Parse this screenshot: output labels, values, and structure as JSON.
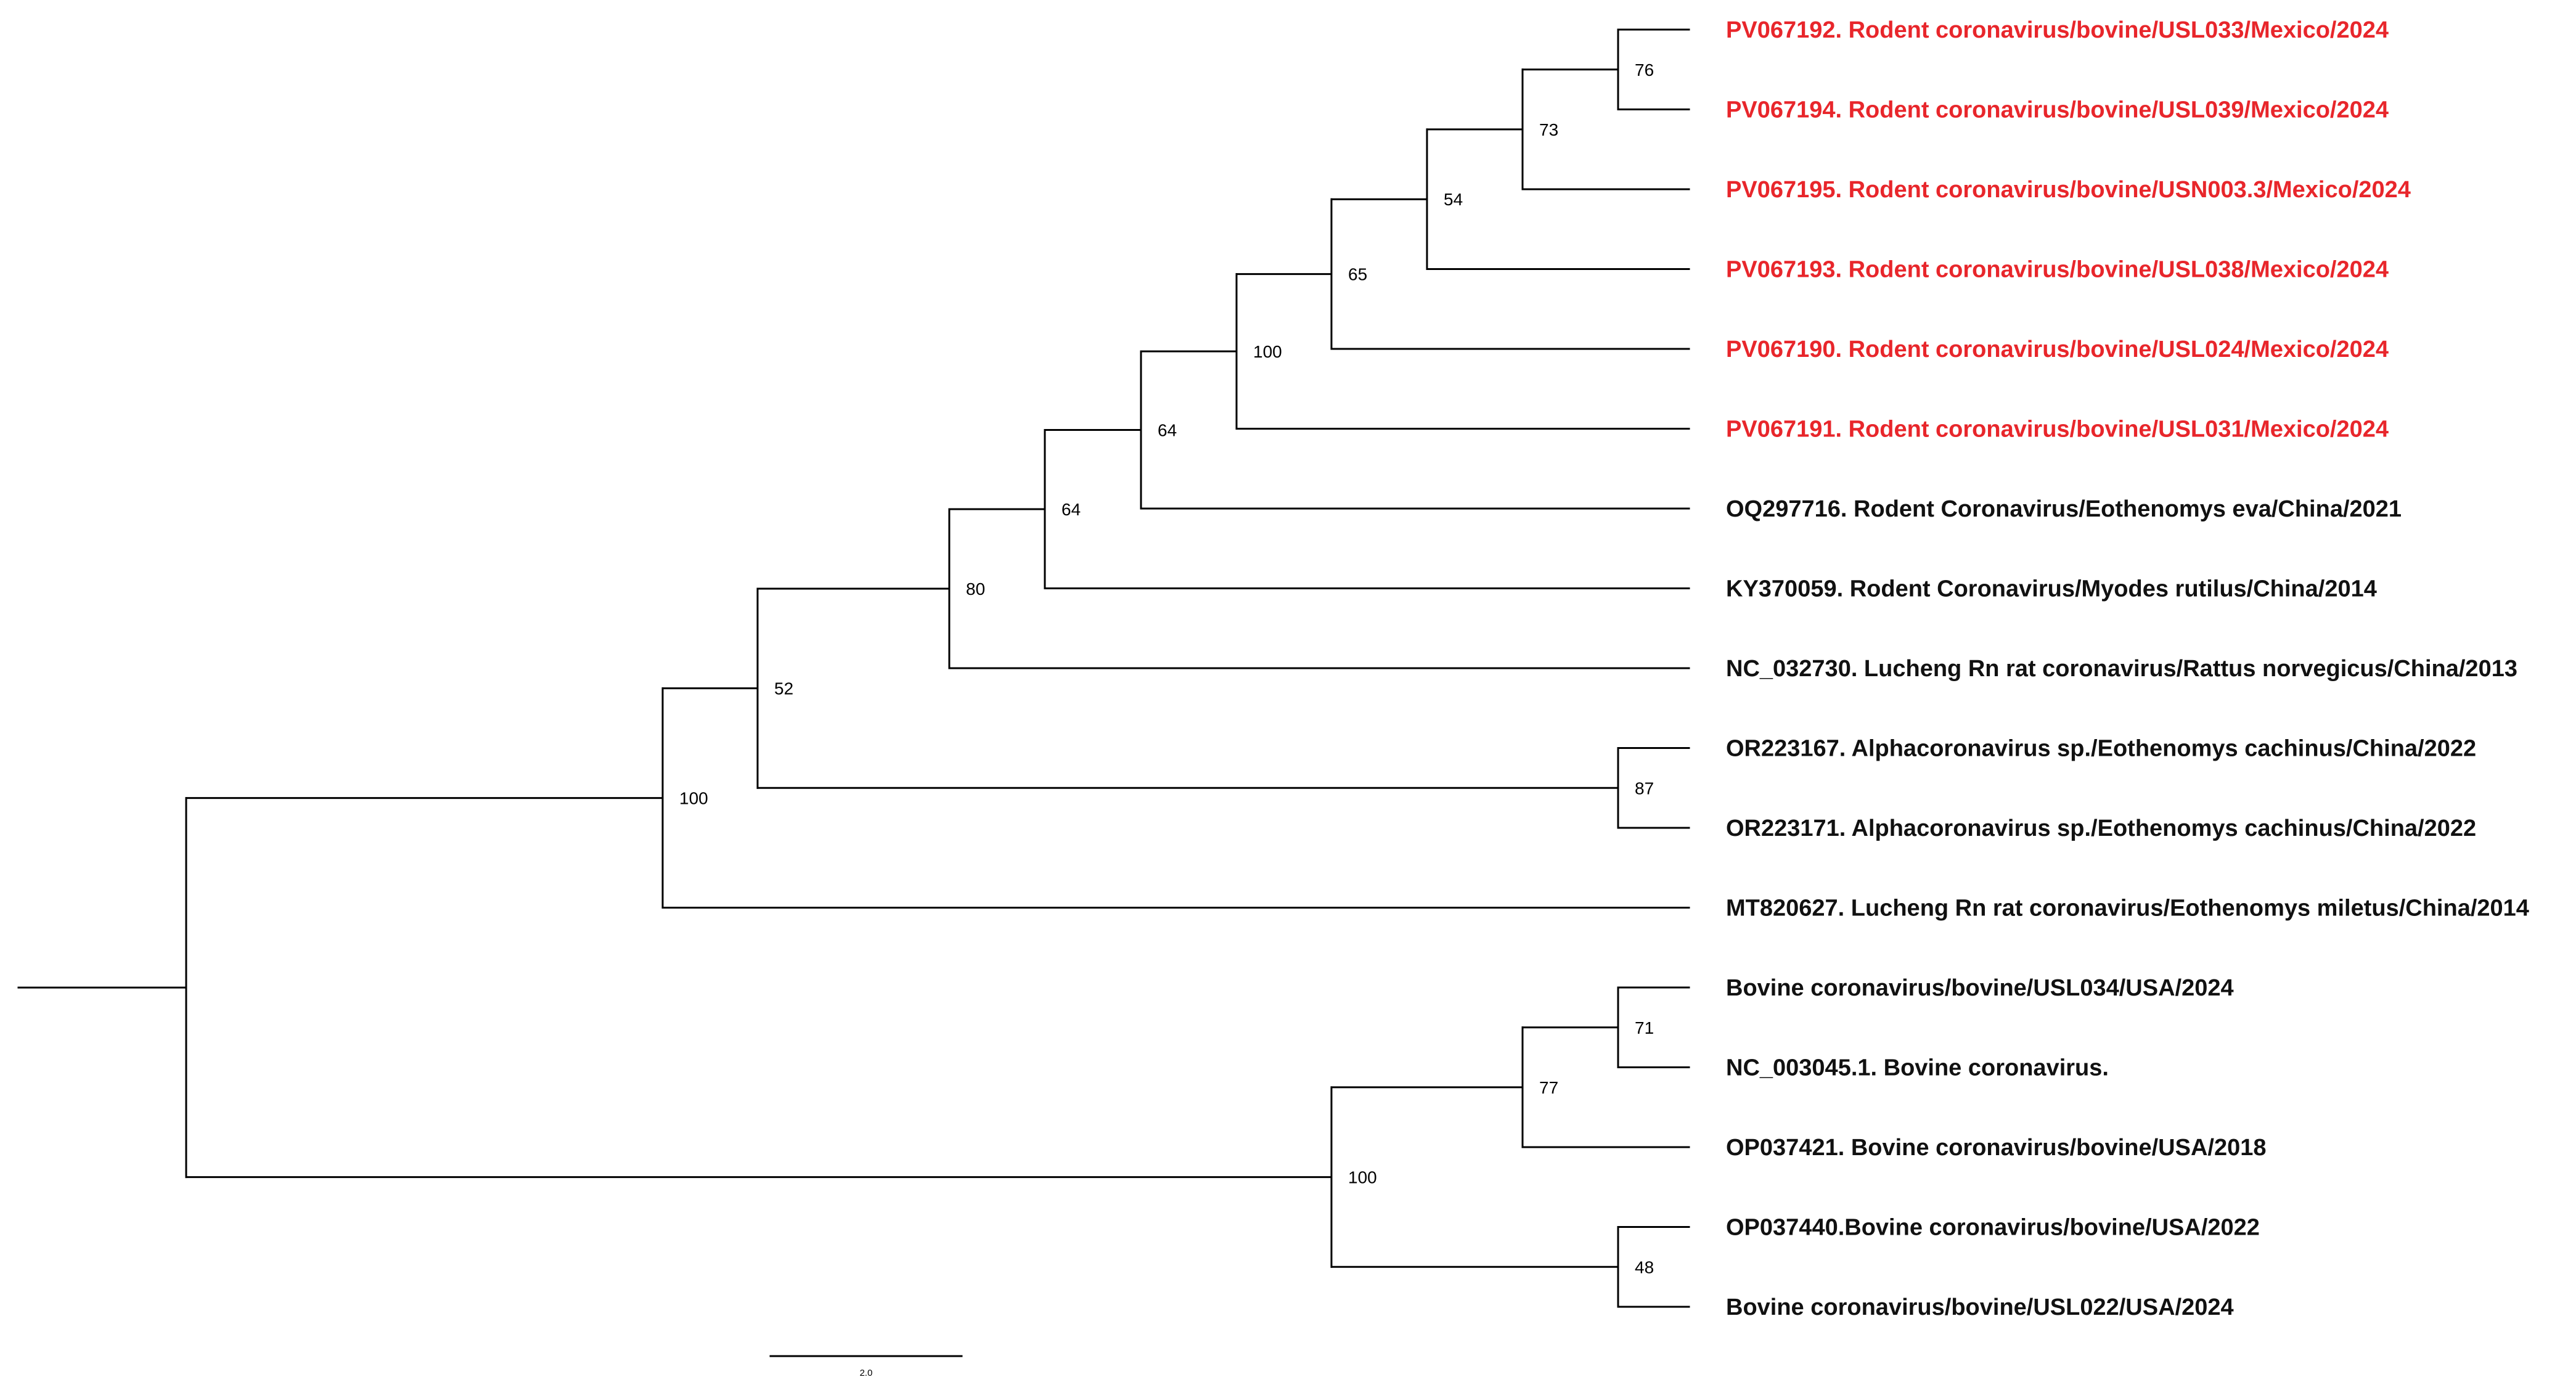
{
  "colors": {
    "highlight": "#e8262b",
    "default": "#111111"
  },
  "tree": {
    "id": "root",
    "children": [
      {
        "id": "n100a",
        "support": "100",
        "children": [
          {
            "id": "n52",
            "support": "52",
            "children": [
              {
                "id": "n80",
                "support": "80",
                "children": [
                  {
                    "id": "n64a",
                    "support": "64",
                    "children": [
                      {
                        "id": "n64b",
                        "support": "64",
                        "children": [
                          {
                            "id": "n100b",
                            "support": "100",
                            "children": [
                              {
                                "id": "n65",
                                "support": "65",
                                "children": [
                                  {
                                    "id": "n54",
                                    "support": "54",
                                    "children": [
                                      {
                                        "id": "n73",
                                        "support": "73",
                                        "children": [
                                          {
                                            "id": "n76",
                                            "support": "76",
                                            "children": [
                                              {
                                                "label": "PV067192. Rodent coronavirus/bovine/USL033/Mexico/2024",
                                                "highlight": true
                                              },
                                              {
                                                "label": "PV067194. Rodent coronavirus/bovine/USL039/Mexico/2024",
                                                "highlight": true
                                              }
                                            ]
                                          },
                                          {
                                            "label": "PV067195. Rodent coronavirus/bovine/USN003.3/Mexico/2024",
                                            "highlight": true
                                          }
                                        ]
                                      },
                                      {
                                        "label": "PV067193. Rodent coronavirus/bovine/USL038/Mexico/2024",
                                        "highlight": true
                                      }
                                    ]
                                  },
                                  {
                                    "label": "PV067190. Rodent coronavirus/bovine/USL024/Mexico/2024",
                                    "highlight": true
                                  }
                                ]
                              },
                              {
                                "label": "PV067191. Rodent coronavirus/bovine/USL031/Mexico/2024",
                                "highlight": true
                              }
                            ]
                          },
                          {
                            "label": "OQ297716. Rodent Coronavirus/Eothenomys eva/China/2021",
                            "highlight": false
                          }
                        ]
                      },
                      {
                        "label": "KY370059. Rodent Coronavirus/Myodes rutilus/China/2014",
                        "highlight": false
                      }
                    ]
                  },
                  {
                    "label": "NC_032730. Lucheng Rn rat coronavirus/Rattus norvegicus/China/2013",
                    "highlight": false
                  }
                ]
              },
              {
                "id": "n87",
                "support": "87",
                "children": [
                  {
                    "label": "OR223167. Alphacoronavirus sp./Eothenomys cachinus/China/2022",
                    "highlight": false
                  },
                  {
                    "label": "OR223171. Alphacoronavirus sp./Eothenomys cachinus/China/2022",
                    "highlight": false
                  }
                ]
              }
            ]
          },
          {
            "label": "MT820627. Lucheng Rn rat coronavirus/Eothenomys miletus/China/2014",
            "highlight": false
          }
        ]
      },
      {
        "id": "n100c",
        "support": "100",
        "children": [
          {
            "id": "n77",
            "support": "77",
            "children": [
              {
                "id": "n71",
                "support": "71",
                "children": [
                  {
                    "label": "Bovine coronavirus/bovine/USL034/USA/2024",
                    "highlight": false
                  },
                  {
                    "label": "NC_003045.1. Bovine coronavirus.",
                    "highlight": false
                  }
                ]
              },
              {
                "label": "OP037421. Bovine coronavirus/bovine/USA/2018",
                "highlight": false
              }
            ]
          },
          {
            "id": "n48",
            "support": "48",
            "children": [
              {
                "label": "OP037440.Bovine coronavirus/bovine/USA/2022",
                "highlight": false
              },
              {
                "label": "Bovine coronavirus/bovine/USL022/USA/2024",
                "highlight": false
              }
            ]
          }
        ]
      }
    ]
  },
  "scale_bar": {
    "label": "2.0"
  }
}
